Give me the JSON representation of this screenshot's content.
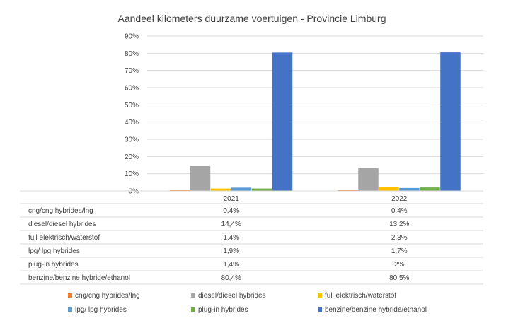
{
  "chart_data": {
    "type": "bar",
    "title": "Aandeel kilometers duurzame voertuigen - Provincie Limburg",
    "categories": [
      "2021",
      "2022"
    ],
    "ylim": [
      0,
      90
    ],
    "yticks": [
      "0%",
      "10%",
      "20%",
      "30%",
      "40%",
      "50%",
      "60%",
      "70%",
      "80%",
      "90%"
    ],
    "grid": true,
    "legend_position": "bottom",
    "series": [
      {
        "name": "cng/cng hybrides/lng",
        "values": [
          0.4,
          0.4
        ],
        "labels": [
          "0,4%",
          "0,4%"
        ],
        "color": "#ED7D31"
      },
      {
        "name": "diesel/diesel hybrides",
        "values": [
          14.4,
          13.2
        ],
        "labels": [
          "14,4%",
          "13,2%"
        ],
        "color": "#A5A5A5"
      },
      {
        "name": "full elektrisch/waterstof",
        "values": [
          1.4,
          2.3
        ],
        "labels": [
          "1,4%",
          "2,3%"
        ],
        "color": "#FFC000"
      },
      {
        "name": "lpg/ lpg hybrides",
        "values": [
          1.9,
          1.7
        ],
        "labels": [
          "1,9%",
          "1,7%"
        ],
        "color": "#5B9BD5"
      },
      {
        "name": "plug-in hybrides",
        "values": [
          1.4,
          2.0
        ],
        "labels": [
          "1,4%",
          "2%"
        ],
        "color": "#70AD47"
      },
      {
        "name": "benzine/benzine hybride/ethanol",
        "values": [
          80.4,
          80.5
        ],
        "labels": [
          "80,4%",
          "80,5%"
        ],
        "color": "#4472C4"
      }
    ]
  }
}
